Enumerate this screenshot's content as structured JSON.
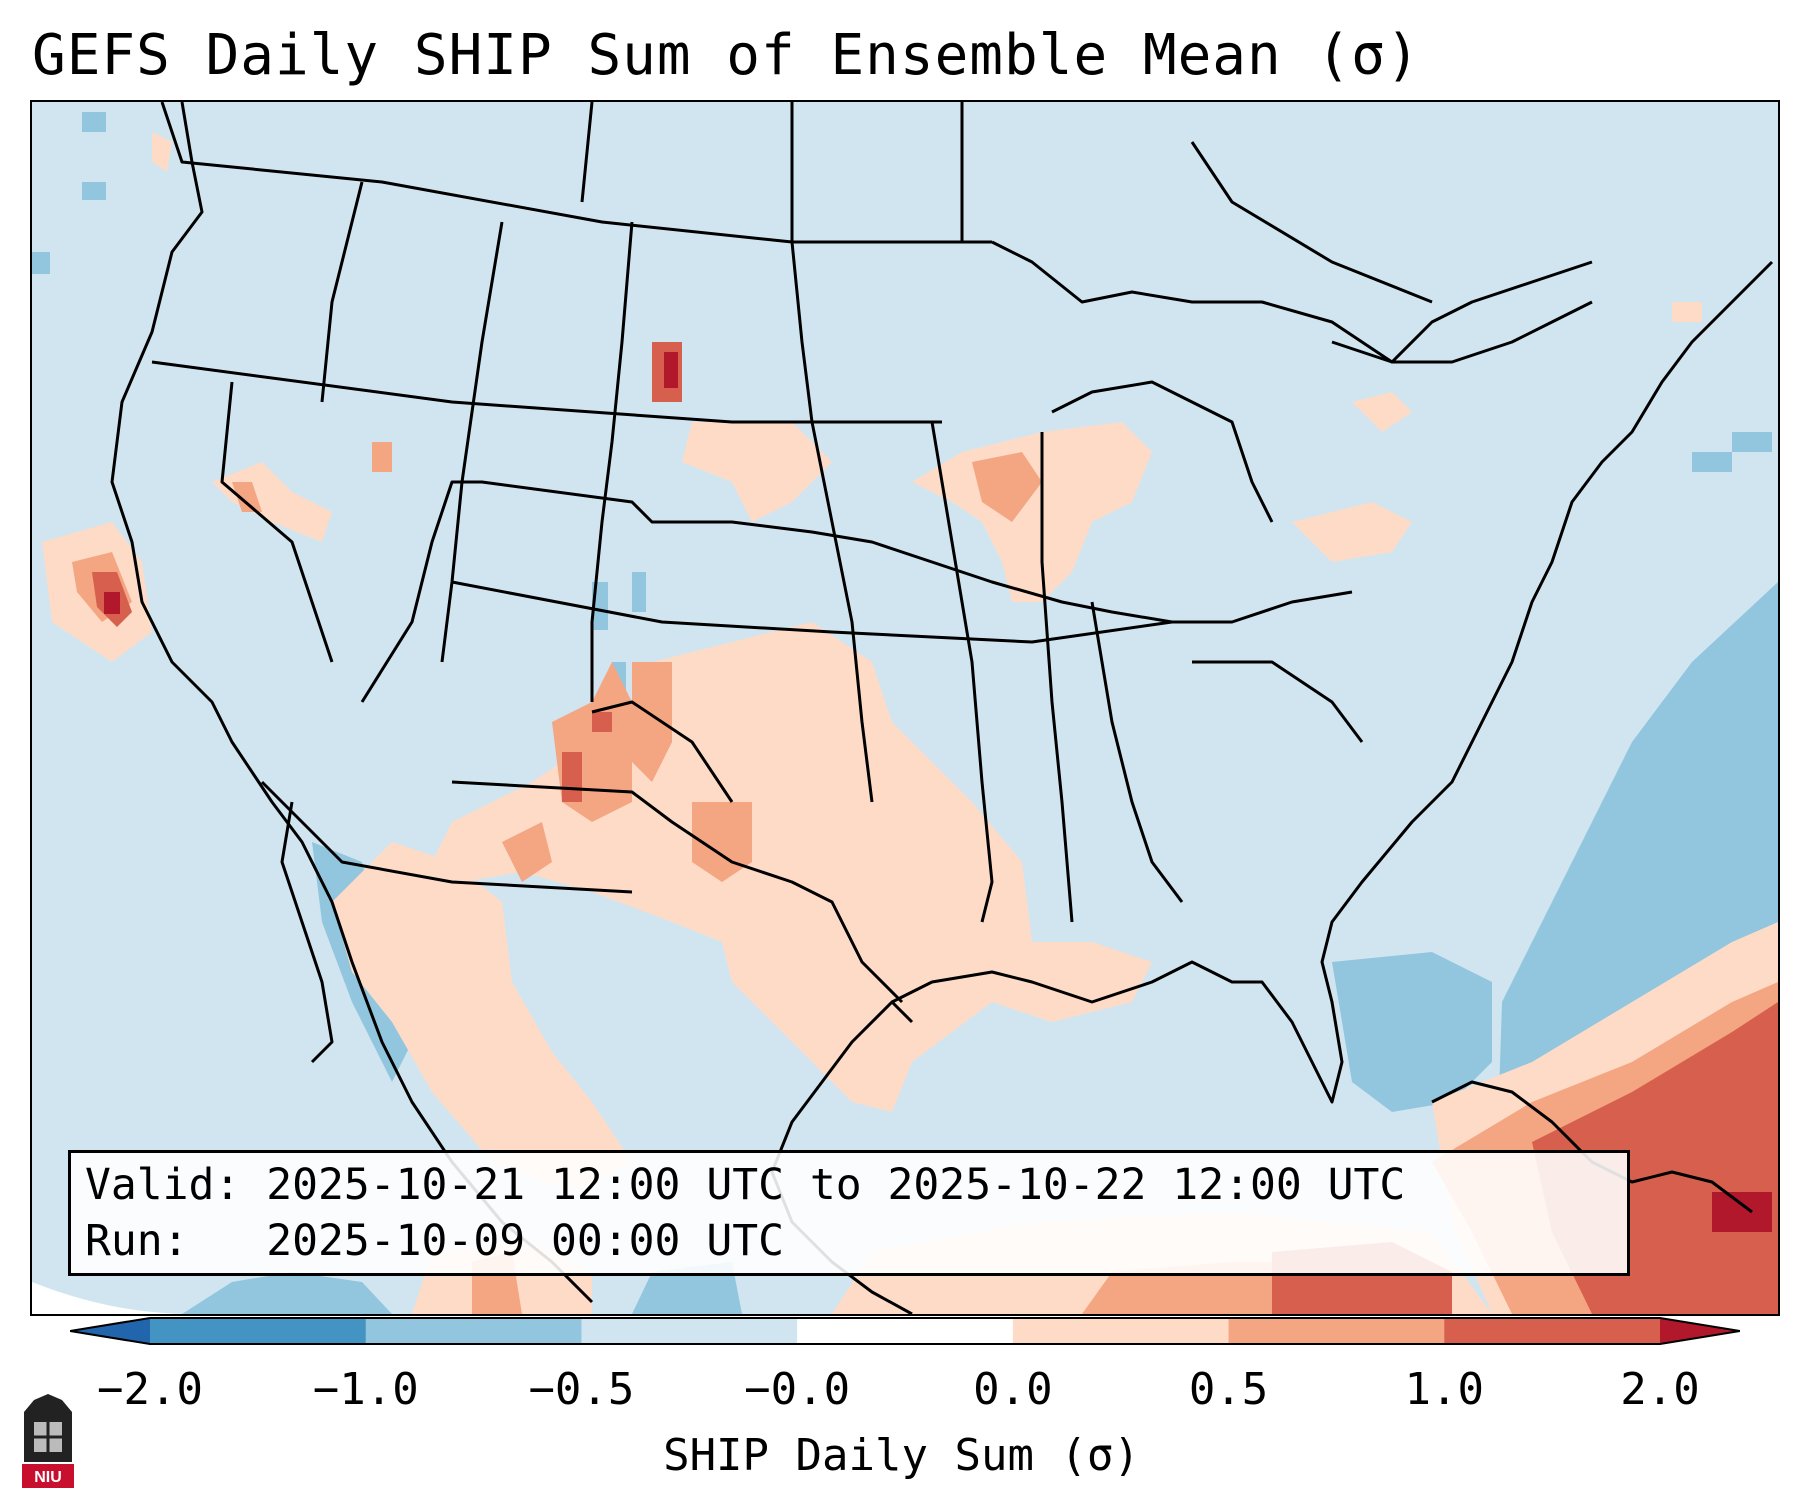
{
  "title": "GEFS Daily SHIP Sum of Ensemble Mean (σ)",
  "map": {
    "region": "Continental United States",
    "colors": {
      "background": "#d1e5f0",
      "neg_0_5_to_1": "#92c5de",
      "neg_1_to_2": "#4393c3",
      "pos_0_to_0_5": "#fddbc7",
      "pos_0_5_to_1": "#f4a582",
      "pos_1_to_2": "#d6604d",
      "pos_gt_2": "#b2182b",
      "borders": "#000000"
    }
  },
  "info": {
    "valid_line": "Valid: 2025-10-21 12:00 UTC to 2025-10-22 12:00 UTC",
    "run_line": "Run:   2025-10-09 00:00 UTC"
  },
  "colorbar": {
    "label": "SHIP Daily Sum (σ)",
    "ticks": [
      "−2.0",
      "−1.0",
      "−0.5",
      "−0.0",
      "0.0",
      "0.5",
      "1.0",
      "2.0"
    ],
    "colors": [
      "#4393c3",
      "#92c5de",
      "#d1e5f0",
      "#ffffff",
      "#fddbc7",
      "#f4a582",
      "#d6604d"
    ],
    "extend_low_color": "#2166ac",
    "extend_high_color": "#b2182b"
  },
  "logo": {
    "text": "NIU"
  }
}
